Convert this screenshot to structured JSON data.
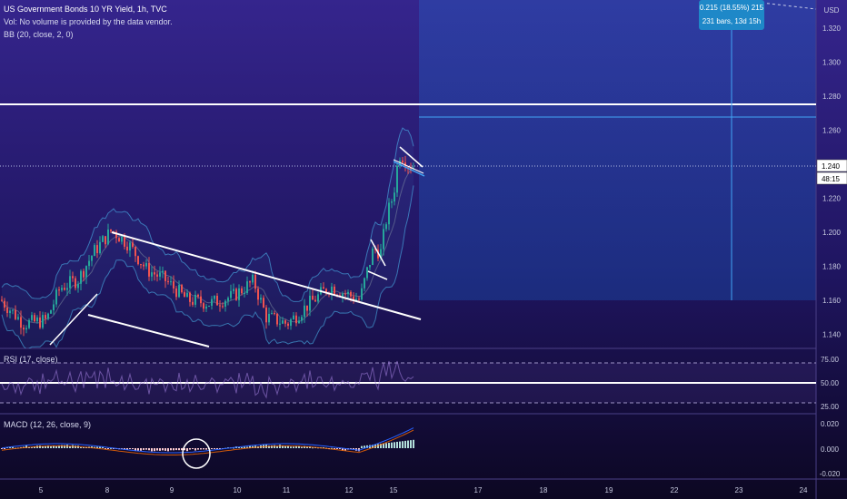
{
  "header": {
    "title": "US Government Bonds 10 YR Yield, 1h, TVC",
    "volume_note": "Vol: No volume is provided by the data vendor.",
    "bb_label": "BB (20, close, 2, 0)"
  },
  "currency": "USD",
  "measure": {
    "line1": "0.215 (18.55%) 215",
    "line2": "231 bars, 13d 15h"
  },
  "price_axis": {
    "ticks": [
      "1.320",
      "1.300",
      "1.280",
      "1.260",
      "1.240",
      "1.220",
      "1.200",
      "1.180",
      "1.160",
      "1.140"
    ],
    "current_price": "1.240",
    "countdown": "48:15"
  },
  "rsi": {
    "label": "RSI (17, close)",
    "ticks": [
      "75.00",
      "50.00",
      "25.00"
    ]
  },
  "macd": {
    "label": "MACD (12, 26, close, 9)",
    "ticks": [
      "0.020",
      "0.000",
      "-0.020"
    ]
  },
  "time_axis": {
    "ticks": [
      "5",
      "8",
      "9",
      "10",
      "11",
      "12",
      "15",
      "17",
      "18",
      "19",
      "22",
      "23",
      "24"
    ]
  },
  "colors": {
    "background_top": "#33238a",
    "background_bottom": "#0c0722",
    "up_candle": "#26a69a",
    "down_candle": "#ef5350",
    "accent": "#2196f3",
    "measure_box": "#1e88c8",
    "trendline": "#ffffff"
  }
}
